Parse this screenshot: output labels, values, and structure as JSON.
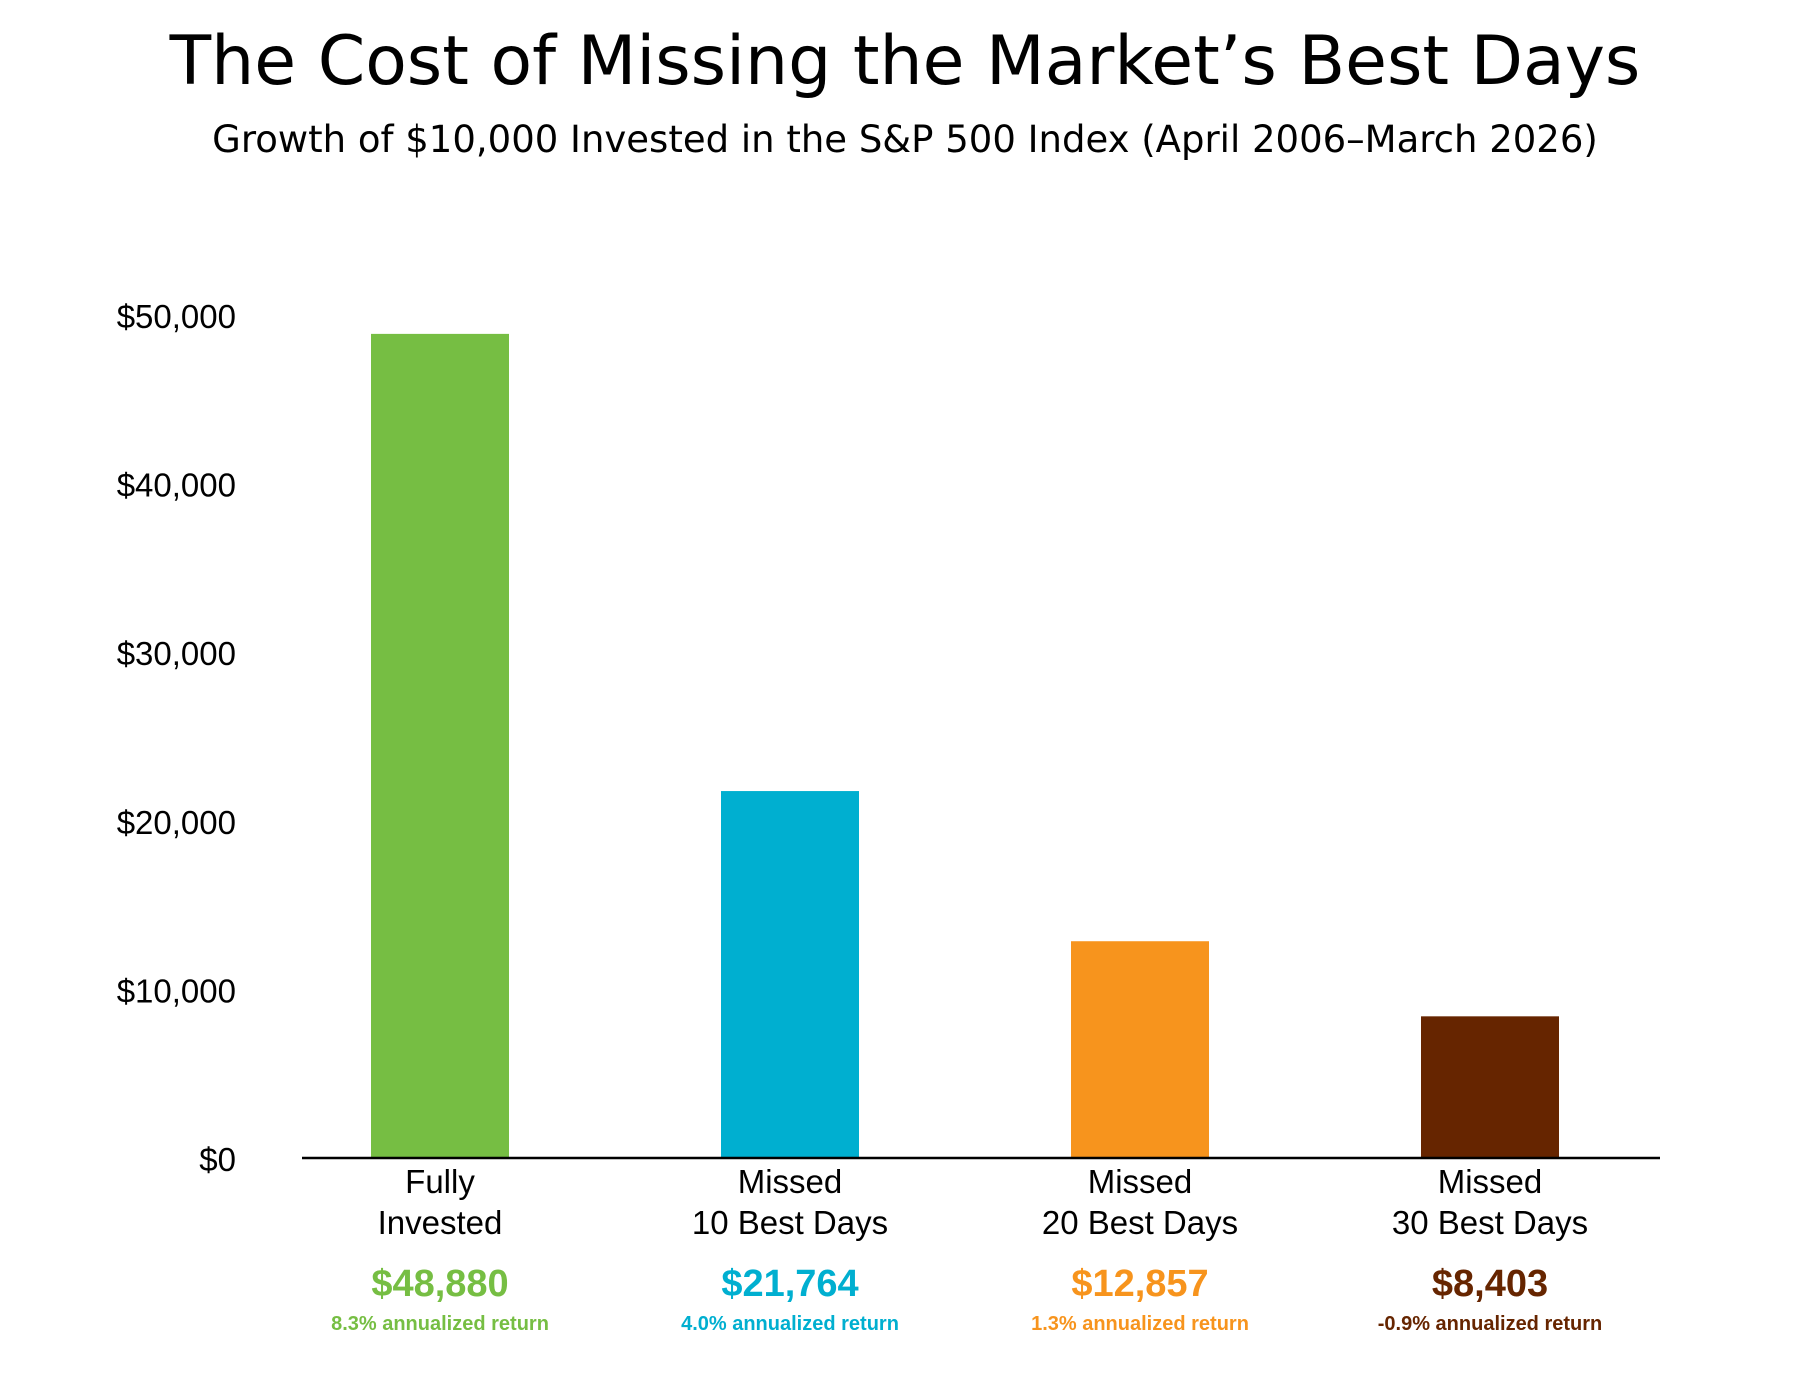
{
  "chart_data": {
    "type": "bar",
    "title": "The Cost of Missing the Market’s Best Days",
    "subtitle": "Growth of $10,000 Invested in the S&P 500 Index (April 2006–March 2026)",
    "ylim": [
      0,
      50000
    ],
    "y_ticks": [
      {
        "value": 0,
        "label": "$0"
      },
      {
        "value": 10000,
        "label": "$10,000"
      },
      {
        "value": 20000,
        "label": "$20,000"
      },
      {
        "value": 30000,
        "label": "$30,000"
      },
      {
        "value": 40000,
        "label": "$40,000"
      },
      {
        "value": 50000,
        "label": "$50,000"
      }
    ],
    "grid": false,
    "legend": "none",
    "bars": [
      {
        "category_lines": [
          "Fully",
          "Invested"
        ],
        "value": 48880,
        "value_label": "$48,880",
        "return_label": "8.3% annualized return",
        "color": "#76BE43"
      },
      {
        "category_lines": [
          "Missed",
          "10 Best Days"
        ],
        "value": 21764,
        "value_label": "$21,764",
        "return_label": "4.0% annualized return",
        "color": "#00AFD0"
      },
      {
        "category_lines": [
          "Missed",
          "20 Best Days"
        ],
        "value": 12857,
        "value_label": "$12,857",
        "return_label": "1.3% annualized return",
        "color": "#F7941D"
      },
      {
        "category_lines": [
          "Missed",
          "30 Best Days"
        ],
        "value": 8403,
        "value_label": "$8,403",
        "return_label": "-0.9% annualized return",
        "color": "#662500"
      }
    ],
    "colors": {
      "axis": "#000000",
      "text": "#000000"
    }
  }
}
